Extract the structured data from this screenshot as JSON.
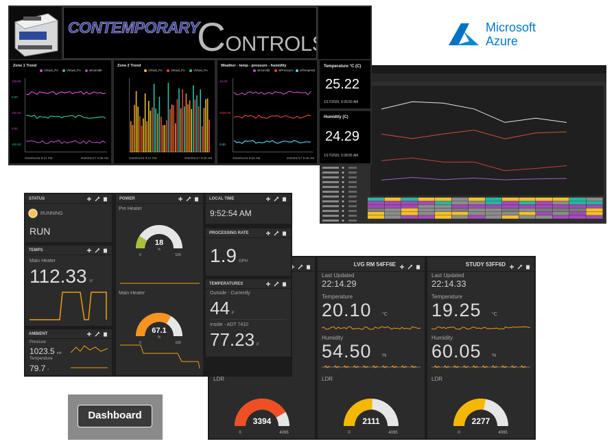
{
  "header": {
    "brand_1": "CONTEMPORARY",
    "brand_2": "CONTROLS"
  },
  "trends": [
    {
      "title": "Zone 1 Trend",
      "legend": [
        {
          "name": "Virtual_Po",
          "color": "#d44bd0"
        },
        {
          "name": "Virtual_Po",
          "color": "#26c4a2"
        },
        {
          "name": "wHumidit",
          "color": "#b043b8"
        }
      ],
      "y_labels": [
        "100.00",
        "0.00",
        "100.00",
        "0.00",
        "100.00"
      ],
      "x_labels": [
        "2020/01/16 9:21 PM",
        "2020/01/17 9:36 AM"
      ]
    },
    {
      "title": "Zone 2 Trend",
      "legend": [
        {
          "name": "Virtual_Po",
          "color": "#e8c21e"
        },
        {
          "name": "Virtual_Po",
          "color": "#e0443a"
        },
        {
          "name": "Virtual_Po",
          "color": "#26c4a2"
        }
      ],
      "y_labels": [],
      "x_labels": [
        "2020/01/16 9:21 PM",
        "2020/01/17 9:36 AM"
      ]
    },
    {
      "title": "Weather - temp - pressure - humidity",
      "legend": [
        {
          "name": "wHumidit",
          "color": "#c04ac0"
        },
        {
          "name": "wPressure",
          "color": "#e0443a"
        },
        {
          "name": "wTemperat",
          "color": "#4fd3f2"
        }
      ],
      "y_labels": [
        "40.00",
        "2000.00",
        "0.00"
      ],
      "x_labels": [
        "2020/01/16 8:52 AM",
        "2020/01/17 9:36 AM"
      ]
    }
  ],
  "readings": [
    {
      "title": "Temperature °C (C)",
      "value": "25.22",
      "time": "1/17/2020, 9:26:50 AM"
    },
    {
      "title": "Humidity (C)",
      "value": "24.29",
      "time": "1/17/2020, 9:28:05 AM"
    }
  ],
  "azure": {
    "brand": "Microsoft",
    "product": "Azure"
  },
  "dashboard_a": {
    "status": {
      "title": "STATUS",
      "indicator": "RUNNING",
      "state": "RUN"
    },
    "temps": {
      "title": "TEMPS",
      "label": "Main Heater",
      "value": "112.33",
      "unit": "°F"
    },
    "ambient": {
      "title": "AMBIENT",
      "pressure_label": "Pressure",
      "pressure": "1023.5",
      "pressure_unit": "mb",
      "temperature_label": "Temperature",
      "temperature": "79.7",
      "temperature_unit": "°"
    },
    "power": {
      "title": "POWER",
      "gauges": [
        {
          "label": "Pre Heater",
          "value": 18,
          "min": 0,
          "max": 100,
          "unit": "%",
          "color": "#a8c23a"
        },
        {
          "label": "Main Heater",
          "value": 67.1,
          "min": 0,
          "max": 100,
          "unit": "%",
          "color": "#f7931e"
        }
      ]
    },
    "local_time": {
      "title": "LOCAL TIME",
      "value": "9:52:54 AM"
    },
    "processing_rate": {
      "title": "PROCESSING RATE",
      "value": "1.9",
      "unit": "GPH"
    },
    "temperatures": {
      "title": "TEMPERATURES",
      "outside_label": "Outside - Currently",
      "outside": "44",
      "outside_unit": "F",
      "inside_label": "Inside - ADT 7410",
      "inside": "77.23",
      "inside_unit": "F"
    }
  },
  "dashboard_b": {
    "rooms": [
      {
        "ldr_label": "LDR",
        "gauge": {
          "value": 3394,
          "min": 0,
          "max": 4095,
          "color": "#f04e23"
        }
      },
      {
        "title": "LVG RM 54FF6E",
        "updated_label": "Last Updated",
        "updated": "22:14.29",
        "temperature_label": "Temperature",
        "temperature": "20.10",
        "temperature_unit": "°C",
        "humidity_label": "Humidity",
        "humidity": "54.50",
        "humidity_unit": "%",
        "ldr_label": "LDR",
        "gauge": {
          "value": 2111,
          "min": 0,
          "max": 4095,
          "color": "#f5b800"
        }
      },
      {
        "title": "STUDY 53FF6D",
        "updated_label": "Last Updated",
        "updated": "22:14.33",
        "temperature_label": "Temperature",
        "temperature": "19.25",
        "temperature_unit": "°C",
        "humidity_label": "Humidity",
        "humidity": "60.05",
        "humidity_unit": "%",
        "ldr_label": "LDR",
        "gauge": {
          "value": 2277,
          "min": 0,
          "max": 4095,
          "color": "#f5b800"
        }
      }
    ]
  },
  "button": {
    "label": "Dashboard"
  }
}
